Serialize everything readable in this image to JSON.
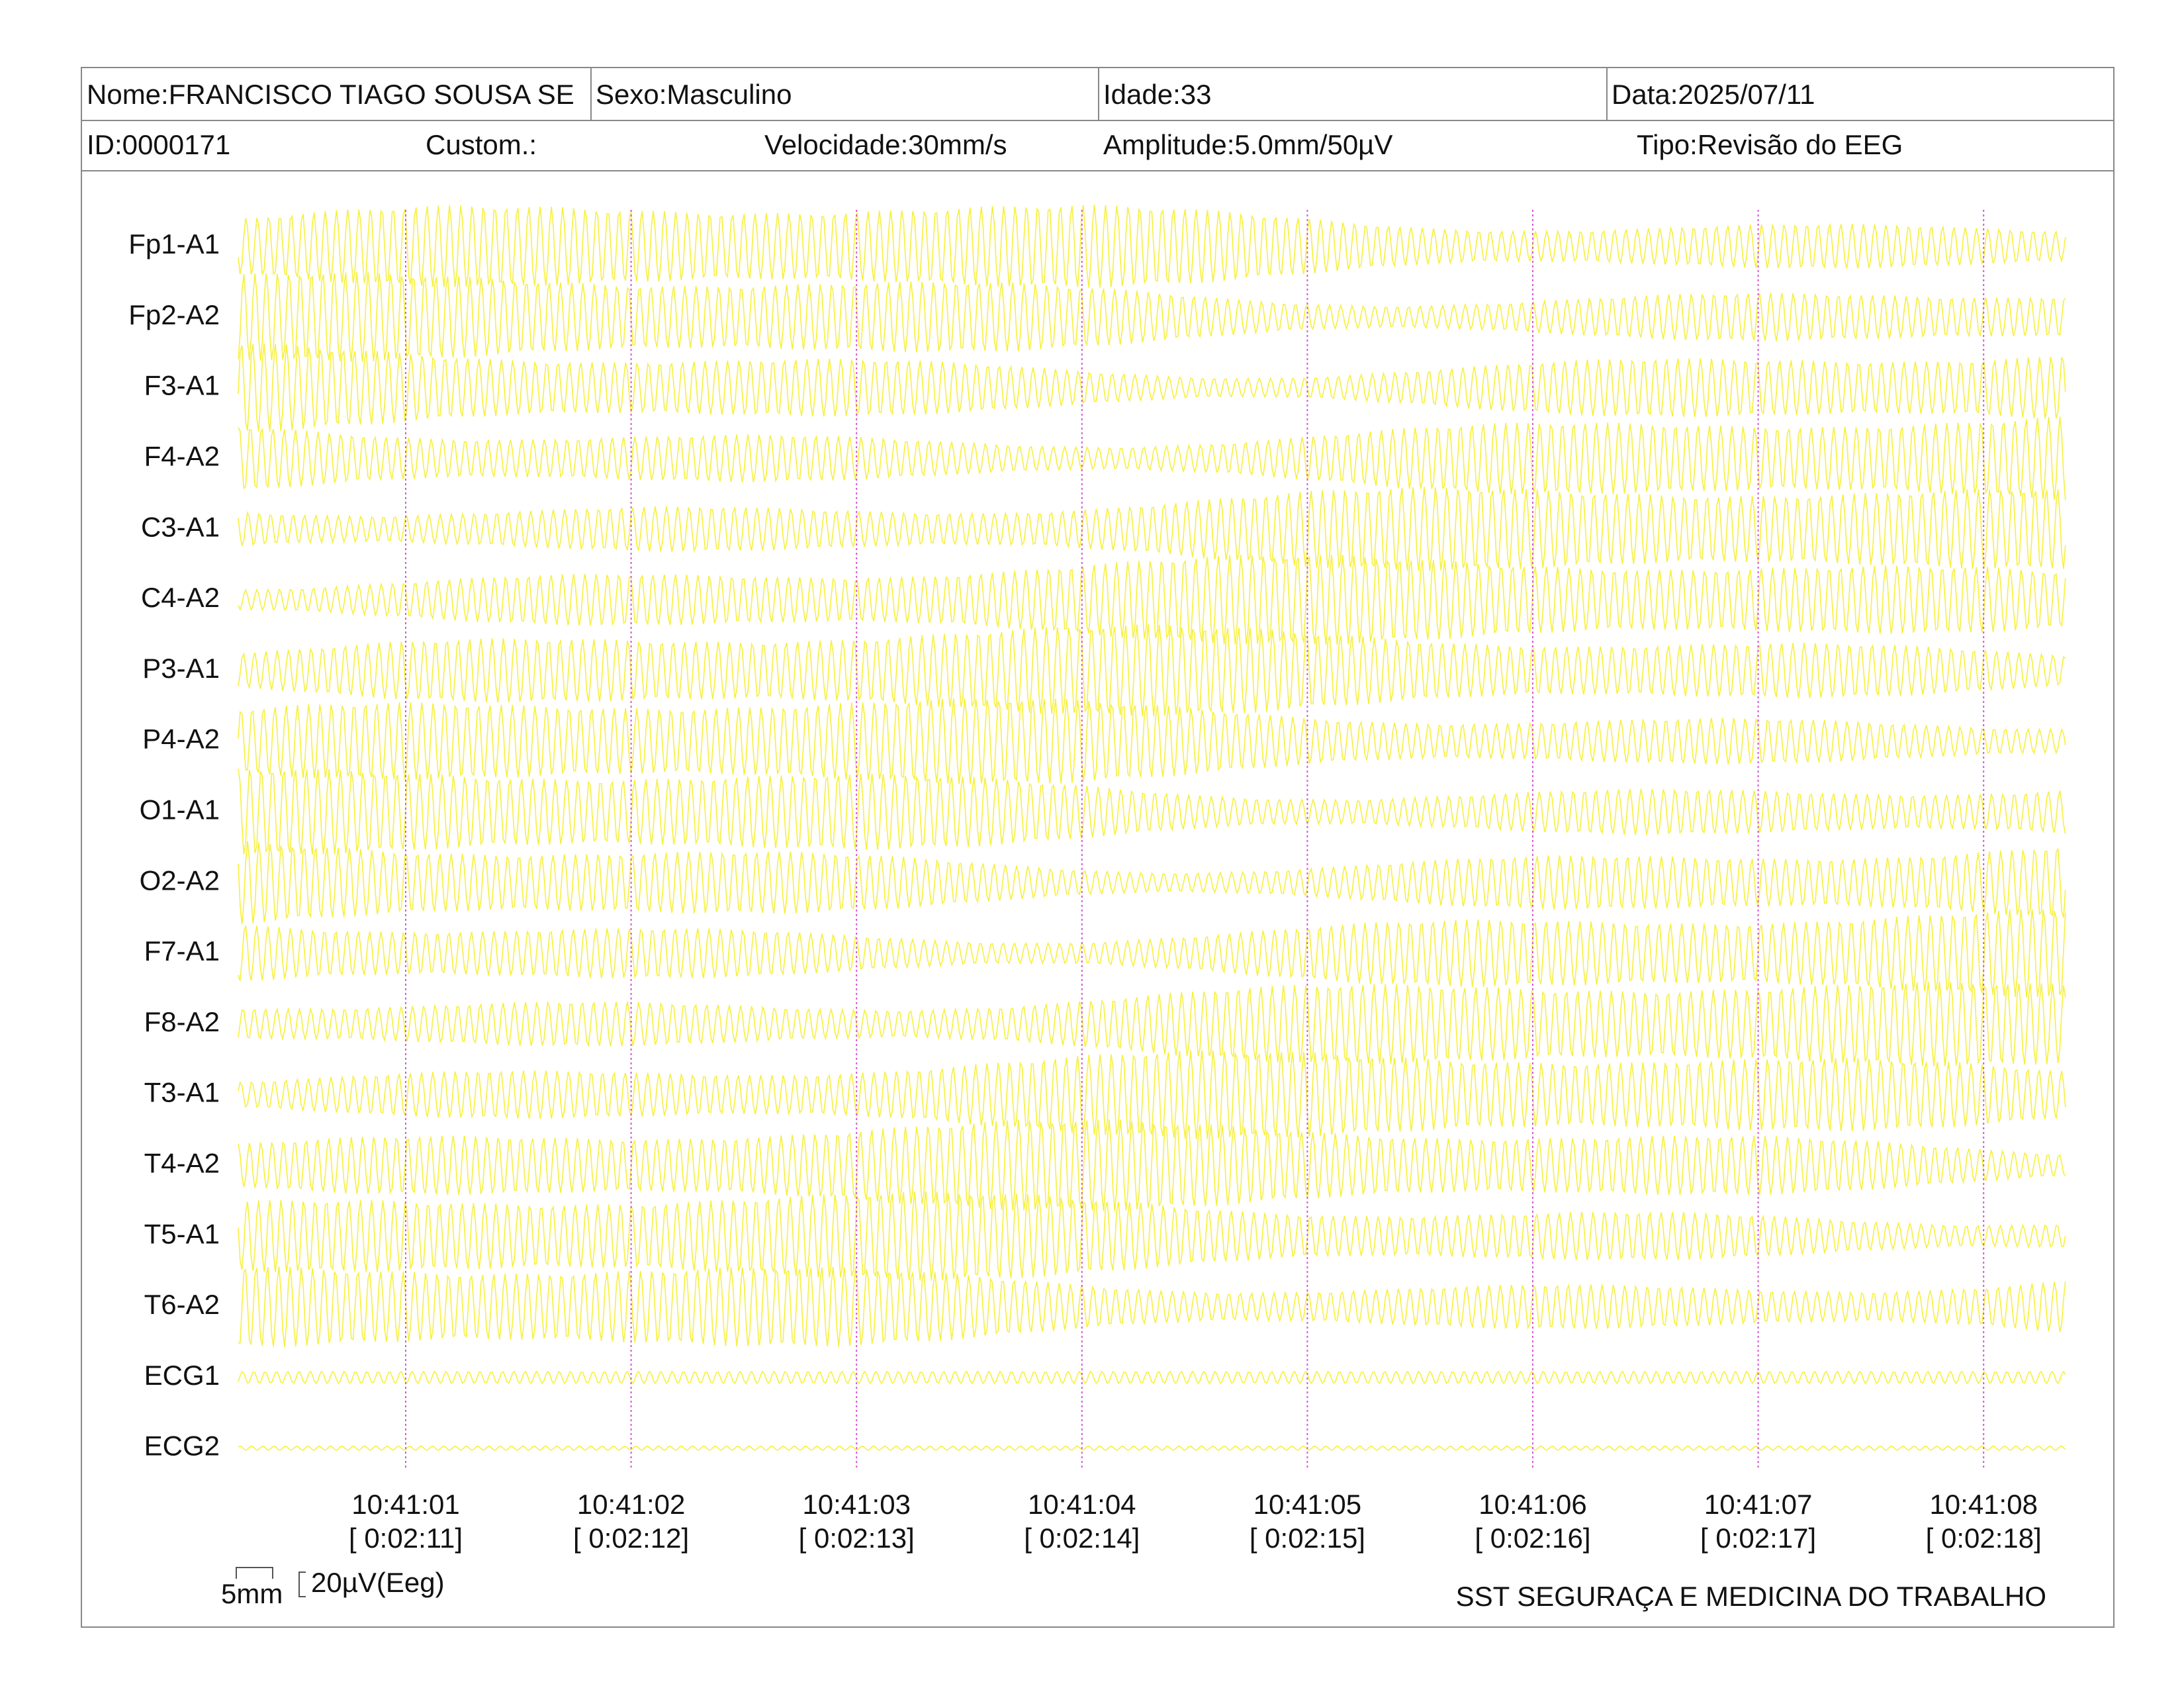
{
  "header": {
    "name": "Nome:FRANCISCO TIAGO SOUSA SE",
    "sex": "Sexo:Masculino",
    "age": "Idade:33",
    "date": "Data:2025/07/11",
    "id": "ID:0000171",
    "custom": "Custom.:",
    "speed": "Velocidade:30mm/s",
    "amplitude": "Amplitude:5.0mm/50µV",
    "type": "Tipo:Revisão do EEG"
  },
  "channels": [
    "Fp1-A1",
    "Fp2-A2",
    "F3-A1",
    "F4-A2",
    "C3-A1",
    "C4-A2",
    "P3-A1",
    "P4-A2",
    "O1-A1",
    "O2-A2",
    "F7-A1",
    "F8-A2",
    "T3-A1",
    "T4-A2",
    "T5-A1",
    "T6-A2",
    "ECG1",
    "ECG2"
  ],
  "time_marks": [
    {
      "time": "10:41:01",
      "elapsed": "[ 0:02:11]"
    },
    {
      "time": "10:41:02",
      "elapsed": "[ 0:02:12]"
    },
    {
      "time": "10:41:03",
      "elapsed": "[ 0:02:13]"
    },
    {
      "time": "10:41:04",
      "elapsed": "[ 0:02:14]"
    },
    {
      "time": "10:41:05",
      "elapsed": "[ 0:02:15]"
    },
    {
      "time": "10:41:06",
      "elapsed": "[ 0:02:16]"
    },
    {
      "time": "10:41:07",
      "elapsed": "[ 0:02:17]"
    },
    {
      "time": "10:41:08",
      "elapsed": "[ 0:02:18]"
    }
  ],
  "scale": {
    "time": "5mm",
    "amplitude": "20µV(Eeg)"
  },
  "footer": "SST SEGURAÇA E MEDICINA DO TRABALHO"
}
